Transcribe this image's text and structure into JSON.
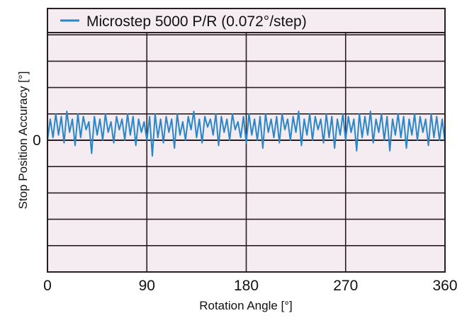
{
  "chart_data": {
    "type": "line",
    "title": "",
    "xlabel": "Rotation Angle [°]",
    "ylabel": "Stop Position Accuracy [°]",
    "xlim": [
      0,
      360
    ],
    "ylim": [
      -5,
      5
    ],
    "x_ticks": [
      0,
      90,
      180,
      270,
      360
    ],
    "x_tick_labels": [
      "0",
      "90",
      "180",
      "270",
      "360"
    ],
    "y_tick_labels": [
      "0"
    ],
    "grid": true,
    "legend_position": "top",
    "line_color": "#2b86c8",
    "background_color": "#f4ecf1",
    "series": [
      {
        "name": "Microstep 5000 P/R (0.072°/step)",
        "x_start": 0,
        "x_step": 2.5,
        "values": [
          0.0,
          0.8,
          0.1,
          1.0,
          0.2,
          0.9,
          -0.1,
          1.1,
          0.3,
          0.8,
          -0.2,
          1.0,
          0.1,
          0.9,
          0.4,
          0.7,
          -0.5,
          0.9,
          0.2,
          0.8,
          0.0,
          1.0,
          0.3,
          0.7,
          -0.1,
          0.9,
          0.4,
          0.8,
          0.0,
          1.0,
          0.2,
          0.9,
          -0.2,
          0.8,
          0.3,
          0.7,
          0.0,
          0.9,
          -0.6,
          1.0,
          0.1,
          0.8,
          -0.1,
          0.9,
          0.3,
          0.8,
          -0.3,
          1.0,
          0.2,
          0.7,
          0.0,
          0.9,
          0.4,
          1.1,
          0.1,
          0.8,
          -0.1,
          0.9,
          0.5,
          0.8,
          0.2,
          1.0,
          -0.2,
          0.9,
          0.3,
          0.8,
          0.0,
          1.0,
          0.4,
          0.7,
          0.1,
          0.9,
          -0.1,
          1.0,
          0.2,
          0.8,
          0.0,
          0.9,
          -0.3,
          1.0,
          0.3,
          0.8,
          0.1,
          0.9,
          -0.1,
          1.0,
          0.4,
          0.8,
          0.0,
          0.9,
          0.3,
          1.1,
          -0.2,
          0.8,
          0.2,
          1.0,
          0.0,
          0.9,
          0.4,
          0.8,
          -0.1,
          1.0,
          0.1,
          0.9,
          -0.3,
          0.8,
          0.2,
          1.0,
          0.0,
          0.9,
          0.3,
          0.8,
          -0.4,
          1.0,
          0.1,
          0.9,
          0.2,
          1.1,
          -0.1,
          0.8,
          0.3,
          1.0,
          0.0,
          0.9,
          -0.4,
          0.8,
          0.2,
          1.0,
          0.1,
          0.9,
          -0.3,
          0.8,
          0.2,
          1.0,
          0.0,
          0.9,
          0.3,
          0.8,
          -0.2,
          1.0,
          0.1,
          0.9,
          0.0,
          0.8,
          -0.1
        ]
      }
    ]
  }
}
